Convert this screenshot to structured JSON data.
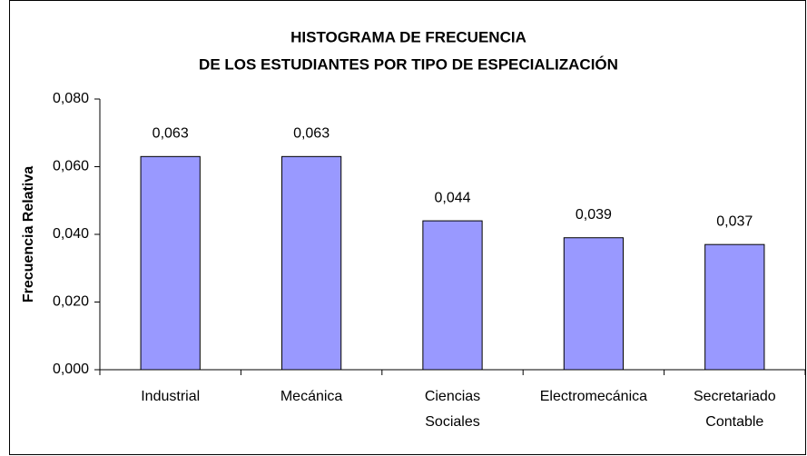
{
  "chart_data": {
    "type": "bar",
    "title": [
      "HISTOGRAMA DE FRECUENCIA",
      "DE LOS ESTUDIANTES POR TIPO DE ESPECIALIZACIÓN"
    ],
    "y_label": "Frecuencia Relativa",
    "categories": [
      "Industrial",
      "Mecánica",
      "Ciencias Sociales",
      "Electromecánica",
      "Secretariado Contable"
    ],
    "values": [
      0.063,
      0.063,
      0.044,
      0.039,
      0.037
    ],
    "value_labels": [
      "0,063",
      "0,063",
      "0,044",
      "0,039",
      "0,037"
    ],
    "color": "#9999ff",
    "ylim": [
      0,
      0.08
    ],
    "yticks": [
      {
        "value": 0,
        "label": "0,000"
      },
      {
        "value": 0.02,
        "label": "0,020"
      },
      {
        "value": 0.04,
        "label": "0,040"
      },
      {
        "value": 0.06,
        "label": "0,060"
      },
      {
        "value": 0.08,
        "label": "0,080"
      }
    ],
    "grid": false
  }
}
